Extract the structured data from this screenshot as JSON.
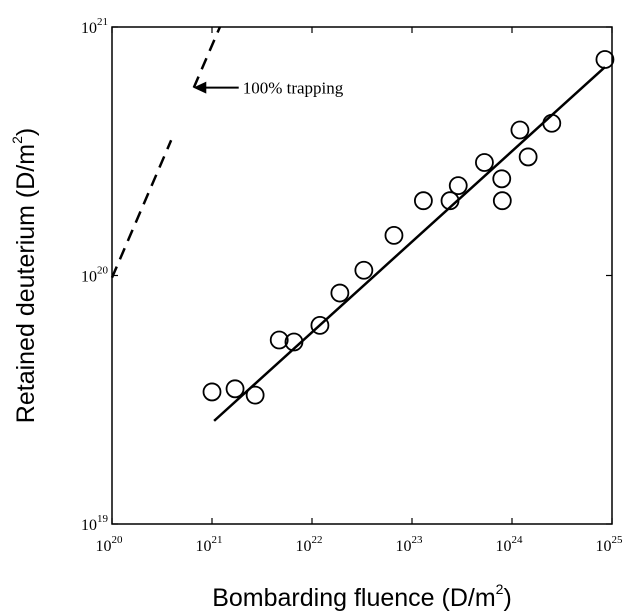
{
  "chart_data": {
    "type": "scatter",
    "xscale": "log",
    "yscale": "log",
    "xlim": [
      1e+20,
      1e+25
    ],
    "ylim": [
      1e+19,
      1e+21
    ],
    "grid": false,
    "legend": "none",
    "xlabel": {
      "base": "Bombarding fluence (D/m",
      "sup": "2",
      "close": ")"
    },
    "ylabel": {
      "base": "Retained deuterium (D/m",
      "sup": "2",
      "close": ")"
    },
    "x_ticks": [
      {
        "value": 1e+20,
        "base": "10",
        "exp": "20"
      },
      {
        "value": 1e+21,
        "base": "10",
        "exp": "21"
      },
      {
        "value": 1e+22,
        "base": "10",
        "exp": "22"
      },
      {
        "value": 1e+23,
        "base": "10",
        "exp": "23"
      },
      {
        "value": 1e+24,
        "base": "10",
        "exp": "24"
      },
      {
        "value": 1e+25,
        "base": "10",
        "exp": "25"
      }
    ],
    "y_ticks": [
      {
        "value": 1e+19,
        "base": "10",
        "exp": "19"
      },
      {
        "value": 1e+20,
        "base": "10",
        "exp": "20"
      },
      {
        "value": 1e+21,
        "base": "10",
        "exp": "21"
      }
    ],
    "points": [
      {
        "x": 1e+21,
        "y": 3.4e+19
      },
      {
        "x": 1.7e+21,
        "y": 3.5e+19
      },
      {
        "x": 2.7e+21,
        "y": 3.3e+19
      },
      {
        "x": 4.7e+21,
        "y": 5.5e+19
      },
      {
        "x": 6.6e+21,
        "y": 5.4e+19
      },
      {
        "x": 1.2e+22,
        "y": 6.3e+19
      },
      {
        "x": 1.9e+22,
        "y": 8.5e+19
      },
      {
        "x": 3.3e+22,
        "y": 1.05e+20
      },
      {
        "x": 6.6e+22,
        "y": 1.45e+20
      },
      {
        "x": 1.3e+23,
        "y": 2e+20
      },
      {
        "x": 2.4e+23,
        "y": 2e+20
      },
      {
        "x": 2.9e+23,
        "y": 2.3e+20
      },
      {
        "x": 5.3e+23,
        "y": 2.85e+20
      },
      {
        "x": 7.9e+23,
        "y": 2.45e+20
      },
      {
        "x": 8e+23,
        "y": 2e+20
      },
      {
        "x": 1.2e+24,
        "y": 3.85e+20
      },
      {
        "x": 1.45e+24,
        "y": 3e+20
      },
      {
        "x": 2.5e+24,
        "y": 4.1e+20
      },
      {
        "x": 8.5e+24,
        "y": 7.4e+20
      }
    ],
    "fit_line": {
      "from": [
        1.05e+21,
        2.6e+19
      ],
      "to": [
        8.5e+24,
        6.9e+20
      ]
    },
    "trapping_line": {
      "from": [
        1e+20,
        9.8e+19
      ],
      "to": [
        1.2e+21,
        1e+21
      ]
    },
    "trapping_gap": [
      3.5e+20,
      5.7e+20
    ],
    "annotation": {
      "text": "100% trapping",
      "arrow_from": [
        1.85e+21,
        5.7e+20
      ],
      "arrow_to": [
        6.5e+20,
        5.7e+20
      ]
    }
  }
}
